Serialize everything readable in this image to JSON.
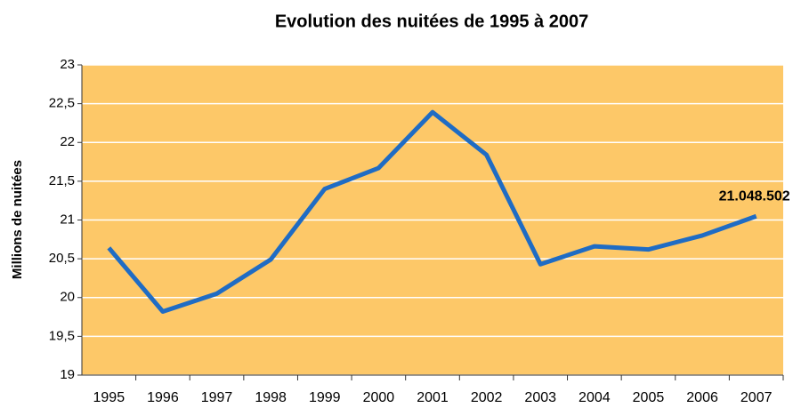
{
  "chart_data": {
    "type": "line",
    "title": "Evolution des nuitées de 1995 à 2007",
    "y_label": "Millions de nuitées",
    "categories": [
      "1995",
      "1996",
      "1997",
      "1998",
      "1999",
      "2000",
      "2001",
      "2002",
      "2003",
      "2004",
      "2005",
      "2006",
      "2007"
    ],
    "series": [
      {
        "name": "Nuitées",
        "color": "#1f6cc4",
        "values": [
          20.64,
          19.82,
          20.05,
          20.49,
          21.4,
          21.67,
          22.39,
          21.84,
          20.43,
          20.66,
          20.62,
          20.8,
          21.048502
        ],
        "value_labels": [
          null,
          null,
          null,
          null,
          null,
          null,
          null,
          null,
          null,
          null,
          null,
          null,
          "21.048.502"
        ]
      }
    ],
    "ylim": [
      19,
      23
    ],
    "yticks": [
      19,
      {
        "value": 19.5,
        "label": "19,5"
      },
      20,
      {
        "value": 20.5,
        "label": "20,5"
      },
      21,
      {
        "value": 21.5,
        "label": "21,5"
      },
      22,
      {
        "value": 22.5,
        "label": "22,5"
      },
      23
    ],
    "grid": true,
    "plot_background": "#fdc868"
  }
}
